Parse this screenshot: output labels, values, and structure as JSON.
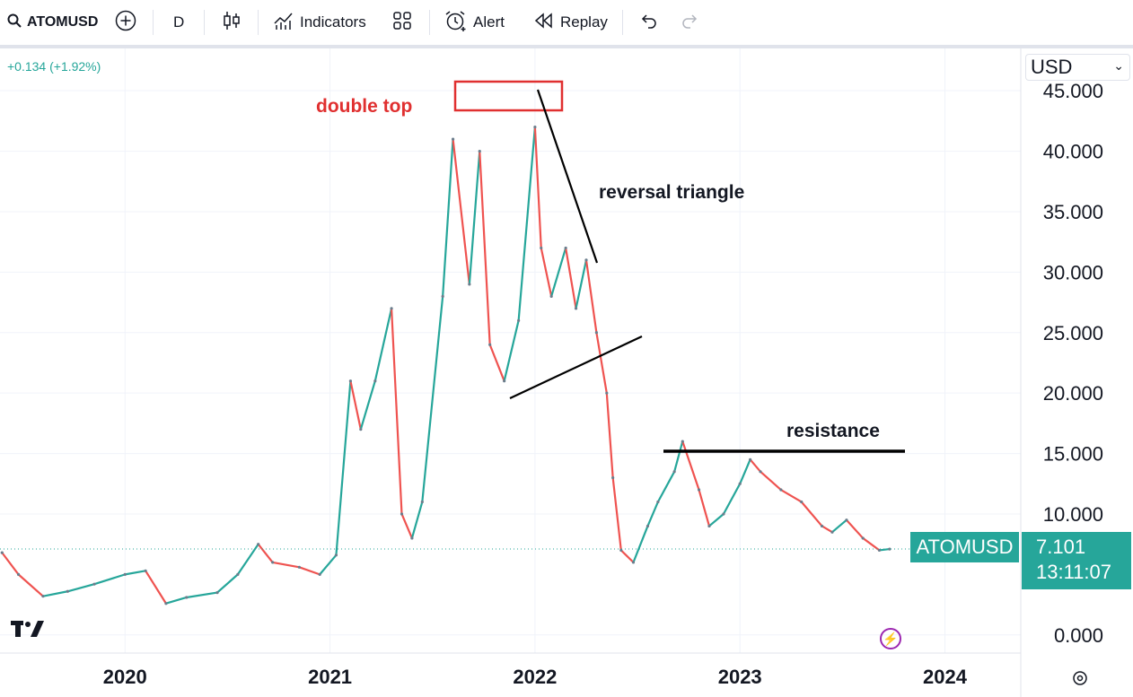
{
  "toolbar": {
    "symbol": "ATOMUSD",
    "interval": "D",
    "indicators_label": "Indicators",
    "alert_label": "Alert",
    "replay_label": "Replay"
  },
  "header": {
    "change": "+0.134 (+1.92%)"
  },
  "price_scale": {
    "currency": "USD",
    "last_symbol": "ATOMUSD",
    "last_price": "7.101",
    "countdown": "13:11:07"
  },
  "annotations": {
    "double_top": "double top",
    "reversal_triangle": "reversal triangle",
    "resistance": "resistance"
  },
  "colors": {
    "up": "#26a69a",
    "down": "#ef5350",
    "accent": "#26a69a",
    "double_top": "#e03030"
  },
  "chart_data": {
    "type": "line",
    "title": "",
    "xlabel": "",
    "ylabel": "",
    "y_ticks": [
      "45.000",
      "40.000",
      "35.000",
      "30.000",
      "25.000",
      "20.000",
      "15.000",
      "10.000",
      "0.000"
    ],
    "x_ticks": [
      "2020",
      "2021",
      "2022",
      "2023",
      "2024"
    ],
    "x_tick_values": [
      2020.0,
      2021.0,
      2022.0,
      2023.0,
      2024.0
    ],
    "ylim": [
      -1.5,
      48.5
    ],
    "xlim": [
      2019.39,
      2024.37
    ],
    "grid": true,
    "series": [
      {
        "x": [
          2019.4,
          2019.48,
          2019.6,
          2019.72,
          2019.85,
          2020.0,
          2020.1,
          2020.2,
          2020.3,
          2020.45,
          2020.55,
          2020.65,
          2020.72,
          2020.85,
          2020.95,
          2021.03,
          2021.1,
          2021.15,
          2021.22,
          2021.3,
          2021.35,
          2021.4,
          2021.45,
          2021.55,
          2021.6,
          2021.68,
          2021.73,
          2021.78,
          2021.85,
          2021.92,
          2022.0,
          2022.03,
          2022.08,
          2022.15,
          2022.2,
          2022.25,
          2022.3,
          2022.35,
          2022.38,
          2022.42,
          2022.48,
          2022.55,
          2022.6,
          2022.68,
          2022.72,
          2022.8,
          2022.85,
          2022.92,
          2023.0,
          2023.05,
          2023.1,
          2023.2,
          2023.3,
          2023.4,
          2023.45,
          2023.52,
          2023.6,
          2023.68,
          2023.73
        ],
        "values": [
          6.8,
          5.0,
          3.2,
          3.6,
          4.2,
          5.0,
          5.3,
          2.6,
          3.1,
          3.5,
          5.0,
          7.5,
          6.0,
          5.6,
          5.0,
          6.6,
          21.0,
          17.0,
          21.0,
          27.0,
          10.0,
          8.0,
          11.0,
          28.0,
          41.0,
          29.0,
          40.0,
          24.0,
          21.0,
          26.0,
          42.0,
          32.0,
          28.0,
          32.0,
          27.0,
          31.0,
          25.0,
          20.0,
          13.0,
          7.0,
          6.0,
          9.0,
          11.0,
          13.5,
          16.0,
          12.0,
          9.0,
          10.0,
          12.5,
          14.5,
          13.5,
          12.0,
          11.0,
          9.0,
          8.5,
          9.5,
          8.0,
          7.0,
          7.1
        ]
      }
    ],
    "last_value": 7.101
  }
}
